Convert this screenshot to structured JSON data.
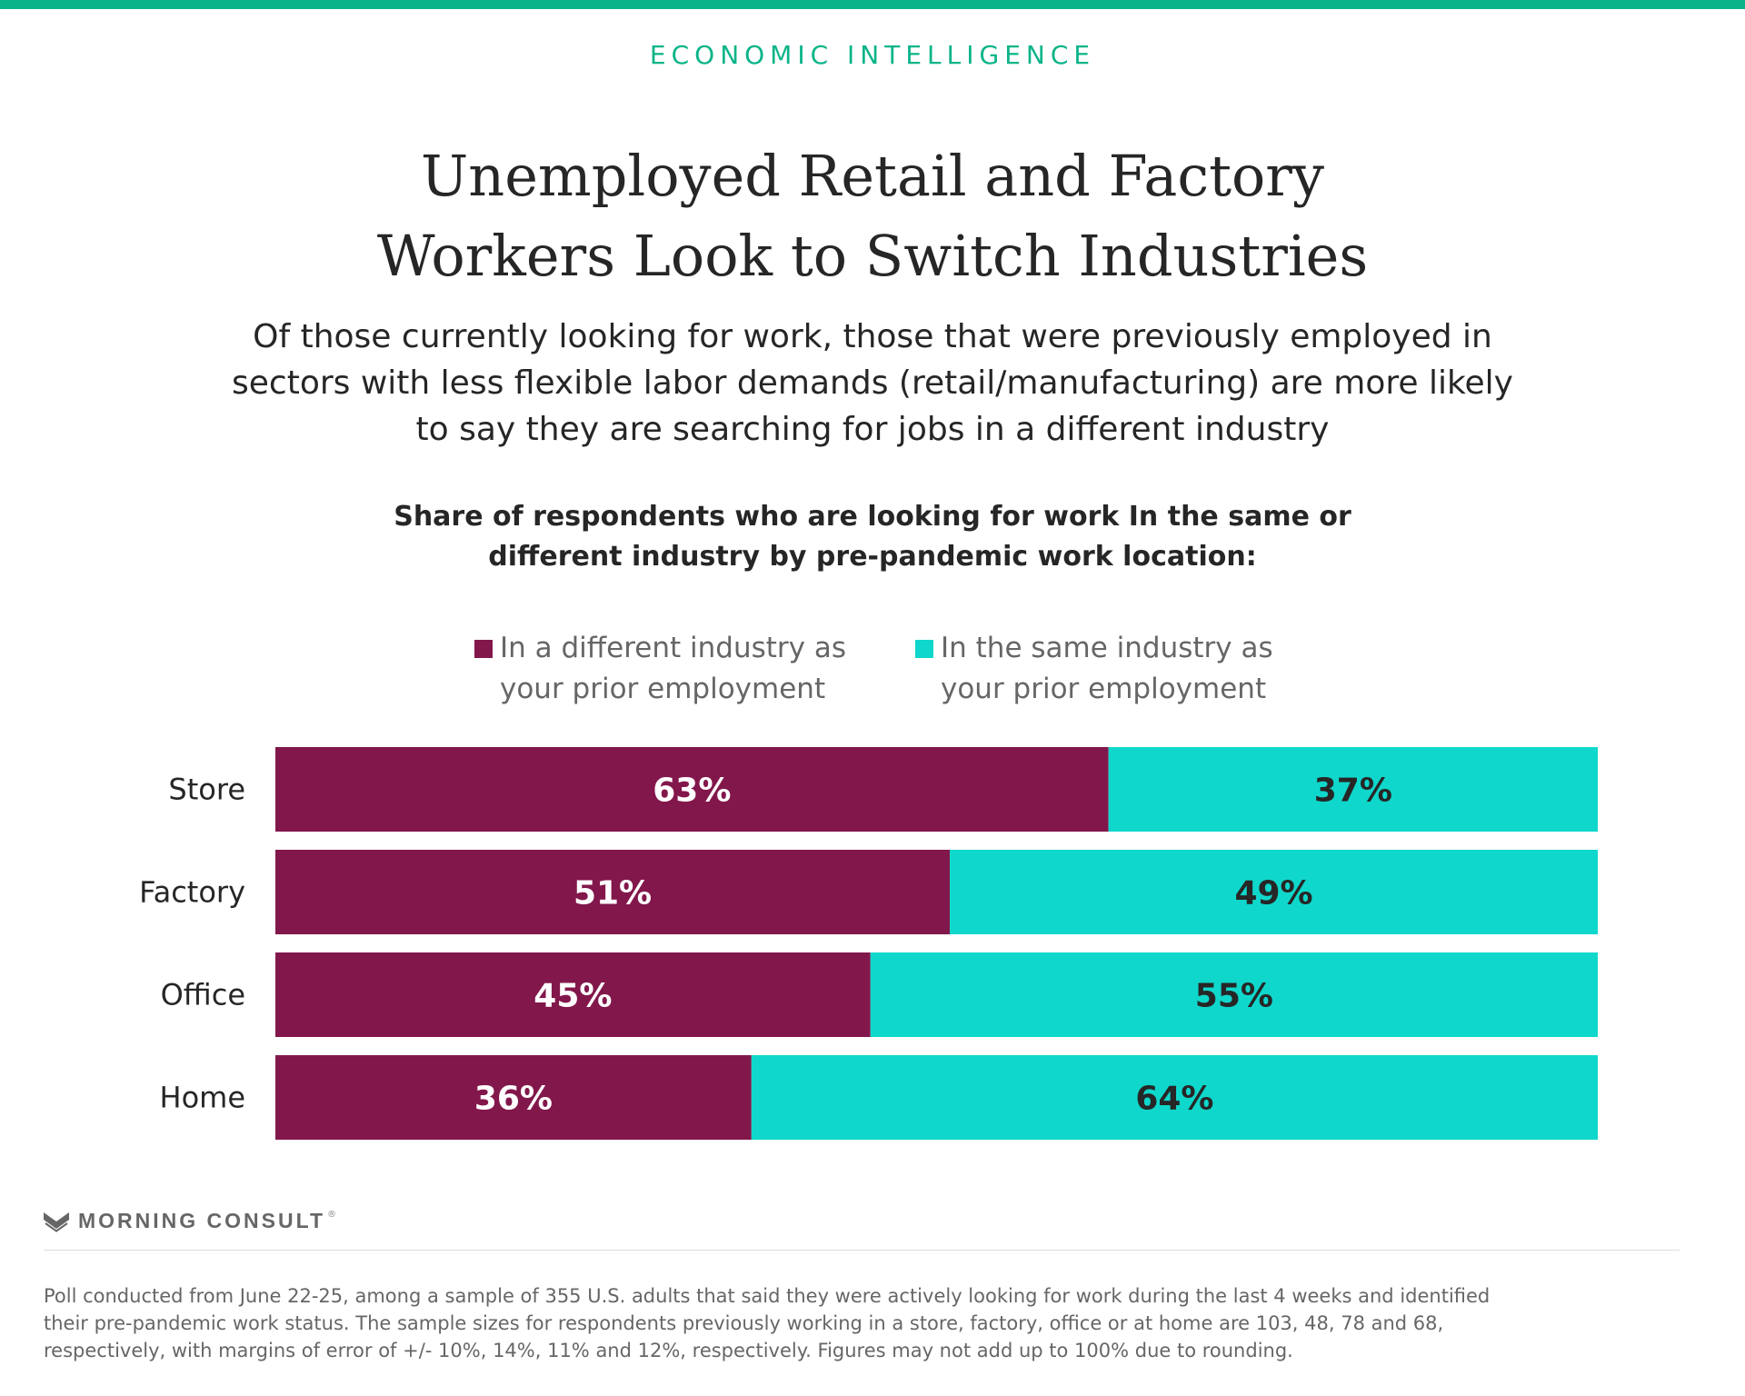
{
  "header": {
    "section_label": "ECONOMIC INTELLIGENCE",
    "title_lines": [
      "Unemployed Retail and Factory",
      "Workers  Look to Switch Industries"
    ],
    "subtitle_lines": [
      "Of those currently looking for work, those that were previously employed in",
      "sectors with less flexible labor demands (retail/manufacturing) are more likely",
      "to say they are searching for jobs in a different industry"
    ]
  },
  "chart_data": {
    "type": "bar",
    "orientation": "horizontal",
    "stacked": true,
    "title_lines": [
      "Share of respondents who are looking for work In the same or",
      "different industry by pre-pandemic work location:"
    ],
    "categories": [
      "Store",
      "Factory",
      "Office",
      "Home"
    ],
    "series": [
      {
        "name_lines": [
          "In a different industry as",
          "your prior employment"
        ],
        "color": "#82174b",
        "label_color": "#ffffff",
        "values": [
          63,
          51,
          45,
          36
        ],
        "labels": [
          "63%",
          "51%",
          "45%",
          "36%"
        ]
      },
      {
        "name_lines": [
          "In the same industry as",
          "your prior employment"
        ],
        "color": "#0fd7cb",
        "label_color": "#262626",
        "values": [
          37,
          49,
          55,
          64
        ],
        "labels": [
          "37%",
          "49%",
          "55%",
          "64%"
        ]
      }
    ],
    "xlim": [
      0,
      100
    ],
    "grid": false,
    "legend_position": "top"
  },
  "footer": {
    "brand": "MORNING CONSULT",
    "brand_mark": "®",
    "footnote_lines": [
      "Poll conducted from June 22-25, among a sample of 355 U.S. adults that said they were actively looking for work during the last 4 weeks and identified",
      "their pre-pandemic work status. The sample sizes for respondents previously working in a store, factory, office or at home are 103, 48, 78 and 68,",
      "respectively, with margins of error of +/- 10%, 14%, 11% and 12%, respectively. Figures may not add up to 100% due to rounding."
    ]
  }
}
